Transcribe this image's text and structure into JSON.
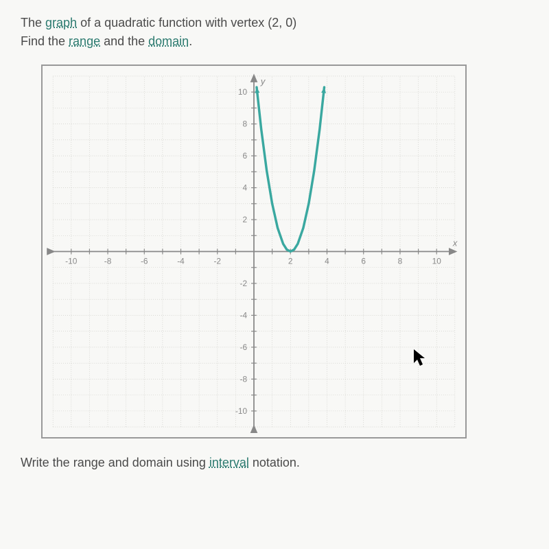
{
  "problem": {
    "line1_part1": "The ",
    "line1_term1": "graph",
    "line1_part2": " of a quadratic function with vertex ",
    "line1_vertex": "(2, 0)",
    "line2_part1": "Find the ",
    "line2_term1": "range",
    "line2_part2": " and the ",
    "line2_term2": "domain",
    "line2_part3": "."
  },
  "bottom": {
    "part1": "Write the range and domain using ",
    "term": "interval",
    "part2": " notation."
  },
  "graph": {
    "type": "quadratic",
    "vertex_x": 2,
    "vertex_y": 0,
    "xlim": [
      -11,
      11
    ],
    "ylim": [
      -11,
      11
    ],
    "xtick_step": 1,
    "ytick_step": 1,
    "xtick_labels": [
      -10,
      -8,
      -6,
      -4,
      -2,
      2,
      4,
      6,
      8,
      10
    ],
    "ytick_labels": [
      -10,
      -8,
      -6,
      -4,
      -2,
      2,
      4,
      6,
      8,
      10
    ],
    "x_axis_label": "x",
    "y_axis_label": "y",
    "curve_color": "#3aa8a0",
    "curve_width": 3.5,
    "grid_color": "#c5c5bf",
    "axis_color": "#888",
    "background_color": "#f8f8f6",
    "tick_label_color": "#888",
    "tick_label_fontsize": 12,
    "parabola_points": [
      [
        0.15,
        10.3
      ],
      [
        0.4,
        7.68
      ],
      [
        0.7,
        5.07
      ],
      [
        1.0,
        3.0
      ],
      [
        1.3,
        1.47
      ],
      [
        1.6,
        0.48
      ],
      [
        1.8,
        0.12
      ],
      [
        2.0,
        0.0
      ],
      [
        2.2,
        0.12
      ],
      [
        2.4,
        0.48
      ],
      [
        2.7,
        1.47
      ],
      [
        3.0,
        3.0
      ],
      [
        3.3,
        5.07
      ],
      [
        3.6,
        7.68
      ],
      [
        3.85,
        10.3
      ]
    ]
  }
}
